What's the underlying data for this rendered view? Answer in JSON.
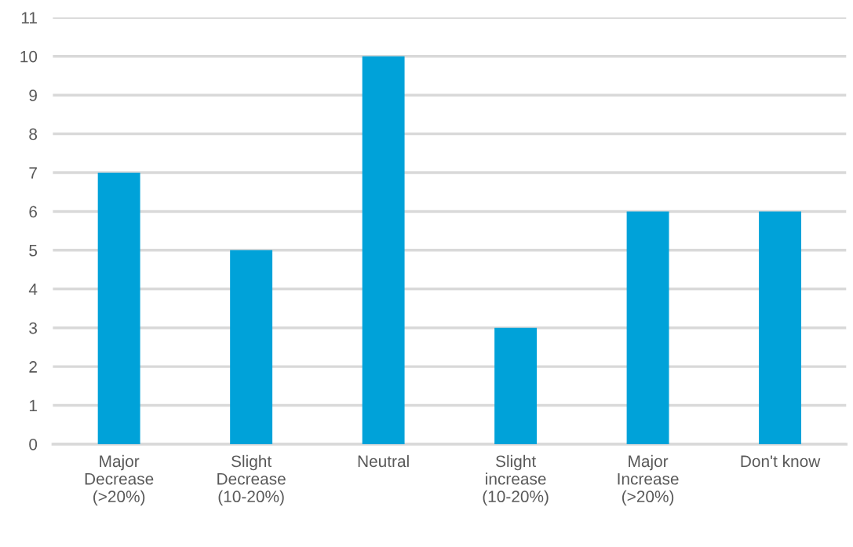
{
  "chart_data": {
    "type": "bar",
    "categories": [
      "Major\nDecrease\n(>20%)",
      "Slight\nDecrease\n(10-20%)",
      "Neutral",
      "Slight\nincrease\n(10-20%)",
      "Major\nIncrease\n(>20%)",
      "Don't know"
    ],
    "values": [
      7,
      5,
      10,
      3,
      6,
      6
    ],
    "color": "#00a2d9",
    "ylim": [
      0,
      11
    ],
    "yticks": [
      0,
      1,
      2,
      3,
      4,
      5,
      6,
      7,
      8,
      9,
      10,
      11
    ],
    "grid": "y"
  }
}
